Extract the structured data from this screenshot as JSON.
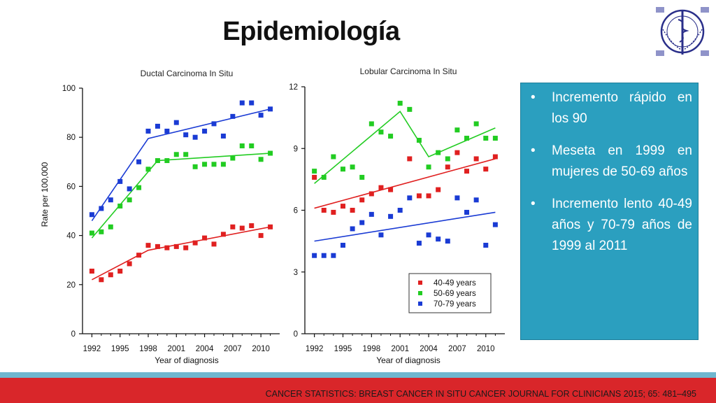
{
  "slide": {
    "title": "Epidemiología",
    "citation": "CANCER STATISTICS: BREAST CANCER IN SITU CANCER JOURNAL FOR CLINICIANS 2015; 65: 481–495"
  },
  "bullets": [
    "Incremento rápido en los 90",
    "Meseta en 1999 en mujeres de 50-69 años",
    "Incremento lento 40-49 años y 70-79 años de 1999 al 2011"
  ],
  "colors": {
    "s40": "#e02020",
    "s50": "#22cc22",
    "s70": "#1a3bd4",
    "accent_box": "#2b9fbf",
    "footer": "#d9262a"
  },
  "chart_data": [
    {
      "type": "scatter",
      "title": "Ductal Carcinoma In Situ",
      "xlabel": "Year of diagnosis",
      "ylabel": "Rate per 100,000",
      "xlim": [
        1991,
        2012
      ],
      "ylim": [
        0,
        100
      ],
      "x_ticks": [
        1992,
        1995,
        1998,
        2001,
        2004,
        2007,
        2010
      ],
      "y_ticks": [
        0,
        20,
        40,
        60,
        80,
        100
      ],
      "x": [
        1992,
        1993,
        1994,
        1995,
        1996,
        1997,
        1998,
        1999,
        2000,
        2001,
        2002,
        2003,
        2004,
        2005,
        2006,
        2007,
        2008,
        2009,
        2010,
        2011
      ],
      "series": [
        {
          "name": "40-49 years",
          "color_key": "s40",
          "values": [
            25.5,
            22,
            24,
            25.5,
            28.5,
            32,
            36,
            35.5,
            35,
            35.5,
            35,
            37,
            39,
            36.5,
            40.5,
            43.5,
            43,
            44,
            40,
            43.5
          ],
          "trend": [
            [
              1992,
              22
            ],
            [
              1998,
              34
            ],
            [
              2011,
              43.5
            ]
          ]
        },
        {
          "name": "50-69 years",
          "color_key": "s50",
          "values": [
            41,
            41.5,
            43.5,
            52,
            54.5,
            59.5,
            67,
            70.5,
            70.5,
            73,
            73,
            68,
            69,
            69,
            69,
            71.5,
            76.5,
            76.5,
            71,
            73.5
          ],
          "trend": [
            [
              1992,
              39
            ],
            [
              1999,
              70.5
            ],
            [
              2011,
              73.5
            ]
          ]
        },
        {
          "name": "70-79 years",
          "color_key": "s70",
          "values": [
            48.5,
            51,
            54.5,
            62,
            59,
            70,
            82.5,
            84.5,
            82.5,
            86,
            81,
            80,
            82.5,
            85.5,
            80.5,
            88.5,
            94,
            94,
            89,
            91.5
          ],
          "trend": [
            [
              1992,
              46
            ],
            [
              1998,
              79.5
            ],
            [
              2011,
              91.5
            ]
          ]
        }
      ]
    },
    {
      "type": "scatter",
      "title": "Lobular Carcinoma In Situ",
      "xlabel": "Year of diagnosis",
      "ylabel": "",
      "xlim": [
        1991,
        2012
      ],
      "ylim": [
        0,
        12
      ],
      "x_ticks": [
        1992,
        1995,
        1998,
        2001,
        2004,
        2007,
        2010
      ],
      "y_ticks": [
        0,
        3,
        6,
        9,
        12
      ],
      "legend_position": "bottom-right",
      "x": [
        1992,
        1993,
        1994,
        1995,
        1996,
        1997,
        1998,
        1999,
        2000,
        2001,
        2002,
        2003,
        2004,
        2005,
        2006,
        2007,
        2008,
        2009,
        2010,
        2011
      ],
      "series": [
        {
          "name": "40-49 years",
          "color_key": "s40",
          "values": [
            7.6,
            6.0,
            5.9,
            6.2,
            6.0,
            6.5,
            6.8,
            7.1,
            7.0,
            null,
            8.5,
            6.7,
            6.7,
            7.0,
            8.1,
            8.8,
            7.9,
            8.5,
            8.0,
            8.6
          ],
          "trend": [
            [
              1992,
              6.1
            ],
            [
              2011,
              8.5
            ]
          ]
        },
        {
          "name": "50-69 years",
          "color_key": "s50",
          "values": [
            7.9,
            7.6,
            8.6,
            8.0,
            8.1,
            7.6,
            10.2,
            9.8,
            9.6,
            11.2,
            10.9,
            9.4,
            8.1,
            8.8,
            8.5,
            9.9,
            9.5,
            10.2,
            9.5,
            9.5
          ],
          "trend": [
            [
              1992,
              7.3
            ],
            [
              2001,
              10.8
            ],
            [
              2004,
              8.6
            ],
            [
              2011,
              10.0
            ]
          ]
        },
        {
          "name": "70-79 years",
          "color_key": "s70",
          "values": [
            3.8,
            3.8,
            3.8,
            4.3,
            5.1,
            5.4,
            5.8,
            4.8,
            5.7,
            6.0,
            6.6,
            4.4,
            4.8,
            4.6,
            4.5,
            6.6,
            5.9,
            6.5,
            4.3,
            5.3
          ],
          "trend": [
            [
              1992,
              4.5
            ],
            [
              2011,
              5.9
            ]
          ]
        }
      ]
    }
  ]
}
